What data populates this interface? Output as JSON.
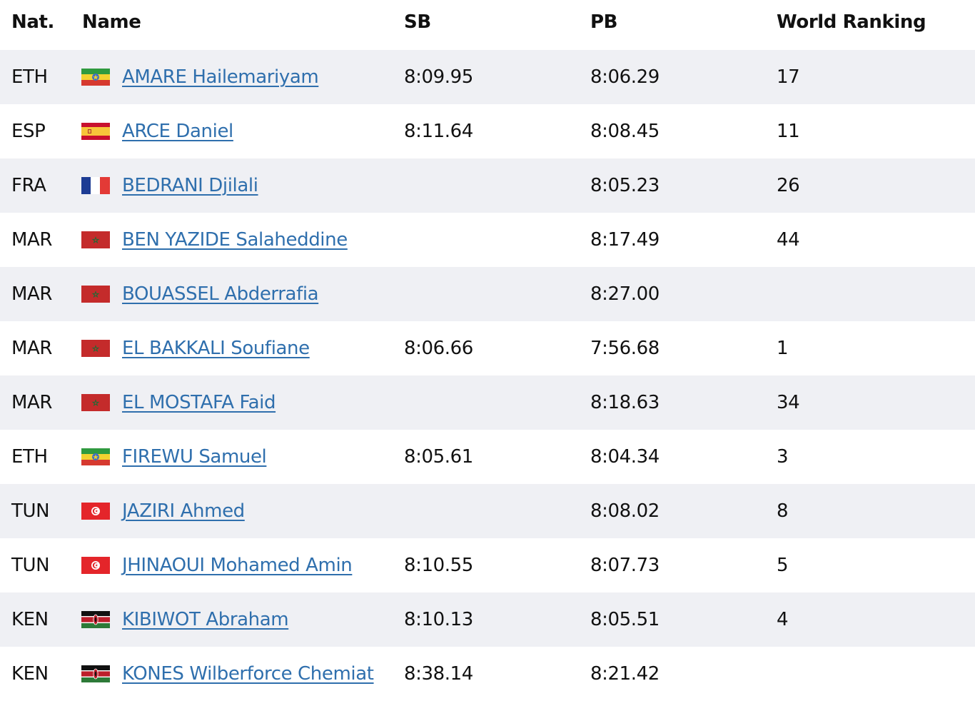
{
  "table": {
    "headers": {
      "nat": "Nat.",
      "name": "Name",
      "sb": "SB",
      "pb": "PB",
      "world_ranking": "World Ranking"
    },
    "rows": [
      {
        "nat": "ETH",
        "flag": "ethiopia-flag-icon",
        "name": "AMARE Hailemariyam",
        "sb": "8:09.95",
        "pb": "8:06.29",
        "wr": "17"
      },
      {
        "nat": "ESP",
        "flag": "spain-flag-icon",
        "name": "ARCE Daniel",
        "sb": "8:11.64",
        "pb": "8:08.45",
        "wr": "11"
      },
      {
        "nat": "FRA",
        "flag": "france-flag-icon",
        "name": "BEDRANI Djilali",
        "sb": "",
        "pb": "8:05.23",
        "wr": "26"
      },
      {
        "nat": "MAR",
        "flag": "morocco-flag-icon",
        "name": "BEN YAZIDE Salaheddine",
        "sb": "",
        "pb": "8:17.49",
        "wr": "44"
      },
      {
        "nat": "MAR",
        "flag": "morocco-flag-icon",
        "name": "BOUASSEL Abderrafia",
        "sb": "",
        "pb": "8:27.00",
        "wr": ""
      },
      {
        "nat": "MAR",
        "flag": "morocco-flag-icon",
        "name": "EL BAKKALI Soufiane",
        "sb": "8:06.66",
        "pb": "7:56.68",
        "wr": "1"
      },
      {
        "nat": "MAR",
        "flag": "morocco-flag-icon",
        "name": "EL MOSTAFA Faid",
        "sb": "",
        "pb": "8:18.63",
        "wr": "34"
      },
      {
        "nat": "ETH",
        "flag": "ethiopia-flag-icon",
        "name": "FIREWU Samuel",
        "sb": "8:05.61",
        "pb": "8:04.34",
        "wr": "3"
      },
      {
        "nat": "TUN",
        "flag": "tunisia-flag-icon",
        "name": "JAZIRI Ahmed",
        "sb": "",
        "pb": "8:08.02",
        "wr": "8"
      },
      {
        "nat": "TUN",
        "flag": "tunisia-flag-icon",
        "name": "JHINAOUI Mohamed Amin",
        "sb": "8:10.55",
        "pb": "8:07.73",
        "wr": "5"
      },
      {
        "nat": "KEN",
        "flag": "kenya-flag-icon",
        "name": "KIBIWOT Abraham",
        "sb": "8:10.13",
        "pb": "8:05.51",
        "wr": "4"
      },
      {
        "nat": "KEN",
        "flag": "kenya-flag-icon",
        "name": "KONES Wilberforce Chemiat",
        "sb": "8:38.14",
        "pb": "8:21.42",
        "wr": ""
      }
    ]
  },
  "colors": {
    "link": "#2f6fad",
    "row_stripe": "#eff0f4",
    "text": "#111111"
  }
}
